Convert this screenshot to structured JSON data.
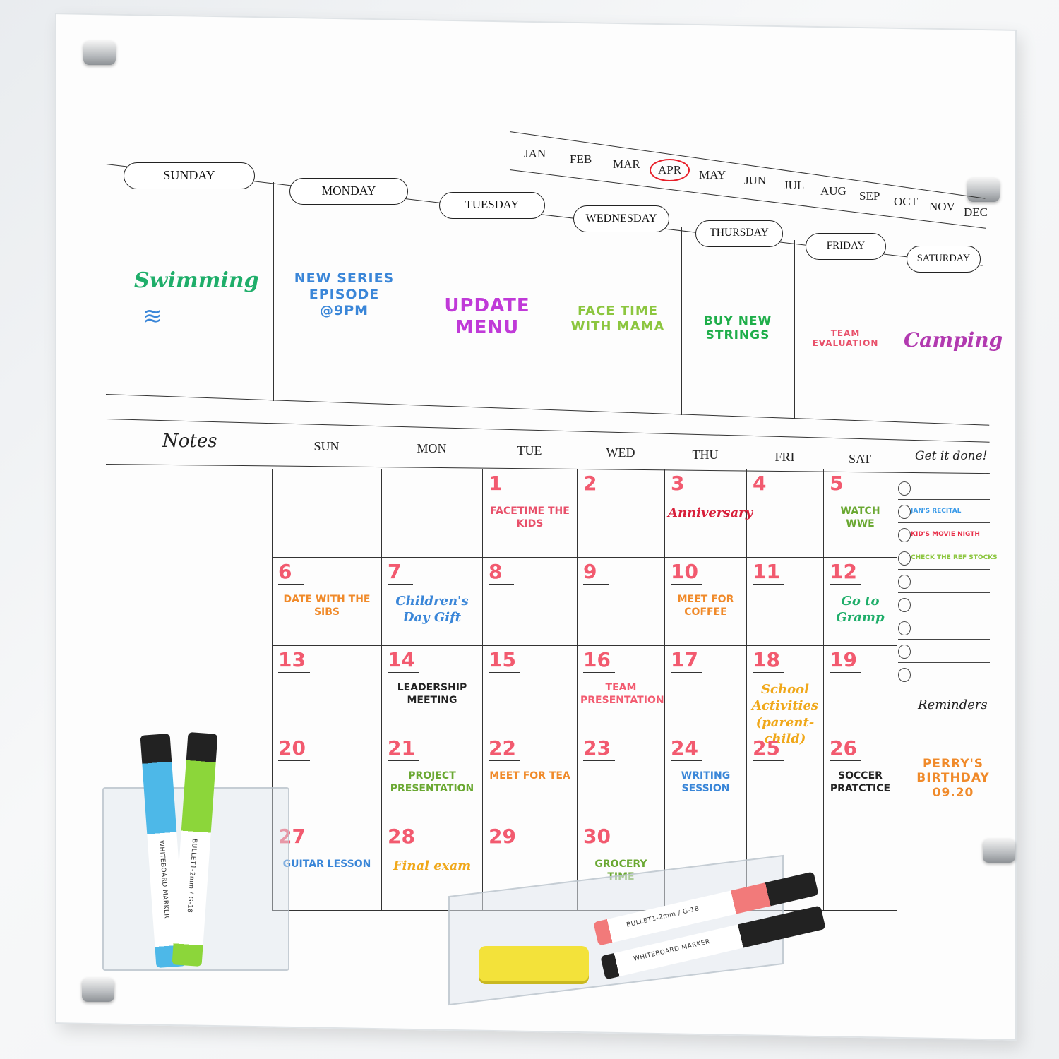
{
  "months": [
    "JAN",
    "FEB",
    "MAR",
    "APR",
    "MAY",
    "JUN",
    "JUL",
    "AUG",
    "SEP",
    "OCT",
    "NOV",
    "DEC"
  ],
  "selected_month": "APR",
  "week": {
    "days": [
      "SUNDAY",
      "MONDAY",
      "TUESDAY",
      "WEDNESDAY",
      "THURSDAY",
      "FRIDAY",
      "SATURDAY"
    ],
    "events": [
      {
        "text": "Swimming",
        "color": "#1fae6a"
      },
      {
        "text": "New series episode @9pm",
        "color": "#3a86d8"
      },
      {
        "text": "Update menu",
        "color": "#c03ad8"
      },
      {
        "text": "Face time with mama",
        "color": "#8cc63f"
      },
      {
        "text": "Buy new strings",
        "color": "#1fae4a"
      },
      {
        "text": "Team evaluation",
        "color": "#e8506a"
      },
      {
        "text": "Camping",
        "color": "#b23ab0"
      }
    ]
  },
  "month": {
    "notes_label": "Notes",
    "weekday_headers": [
      "SUN",
      "MON",
      "TUE",
      "WED",
      "THU",
      "FRI",
      "SAT"
    ],
    "cells": [
      {
        "d": ""
      },
      {
        "d": ""
      },
      {
        "d": "1",
        "e": "Facetime the kids",
        "c": "#e8506a"
      },
      {
        "d": "2"
      },
      {
        "d": "3",
        "e": "Anniversary",
        "c": "#d81f3a",
        "s": true
      },
      {
        "d": "4"
      },
      {
        "d": "5",
        "e": "Watch WWE",
        "c": "#6aa832"
      },
      {
        "d": "6",
        "e": "Date with the sibs",
        "c": "#f08a2a"
      },
      {
        "d": "7",
        "e": "Children's Day Gift",
        "c": "#3a86d8",
        "s": true
      },
      {
        "d": "8"
      },
      {
        "d": "9"
      },
      {
        "d": "10",
        "e": "Meet for coffee",
        "c": "#f08a2a"
      },
      {
        "d": "11"
      },
      {
        "d": "12",
        "e": "Go to Gramp",
        "c": "#1fae6a",
        "s": true
      },
      {
        "d": "13"
      },
      {
        "d": "14",
        "e": "Leadership meeting",
        "c": "#222"
      },
      {
        "d": "15"
      },
      {
        "d": "16",
        "e": "Team presentation",
        "c": "#f25a6f"
      },
      {
        "d": "17"
      },
      {
        "d": "18",
        "e": "School Activities (parent-child)",
        "c": "#f0a81a",
        "s": true
      },
      {
        "d": "19"
      },
      {
        "d": "20"
      },
      {
        "d": "21",
        "e": "Project presentation",
        "c": "#6aa832"
      },
      {
        "d": "22",
        "e": "Meet for tea",
        "c": "#f08a2a"
      },
      {
        "d": "23"
      },
      {
        "d": "24",
        "e": "Writing session",
        "c": "#3a86d8"
      },
      {
        "d": "25"
      },
      {
        "d": "26",
        "e": "Soccer pratctice",
        "c": "#222"
      },
      {
        "d": "27",
        "e": "Guitar lesson",
        "c": "#3a86d8"
      },
      {
        "d": "28",
        "e": "Final exam",
        "c": "#f0a81a",
        "s": true
      },
      {
        "d": "29"
      },
      {
        "d": "30",
        "e": "Grocery time",
        "c": "#6aa832"
      },
      {
        "d": ""
      },
      {
        "d": ""
      },
      {
        "d": ""
      }
    ]
  },
  "todo": {
    "label": "Get it done!",
    "items": [
      {
        "text": "",
        "color": "#222"
      },
      {
        "text": "JAN'S RECITAL",
        "color": "#3a9ae8"
      },
      {
        "text": "KID'S MOVIE NIGTH",
        "color": "#e8304a"
      },
      {
        "text": "CHECK THE REF STOCKS",
        "color": "#8cc63f"
      },
      {
        "text": "",
        "color": "#222"
      },
      {
        "text": "",
        "color": "#222"
      },
      {
        "text": "",
        "color": "#222"
      },
      {
        "text": "",
        "color": "#222"
      },
      {
        "text": "",
        "color": "#222"
      }
    ]
  },
  "reminders": {
    "label": "Reminders",
    "text": "PERRY'S BIRTHDAY 09.20",
    "color": "#f08a2a"
  },
  "markers": {
    "brand_text": "WHITEBOARD MARKER",
    "model_text": "BULLET1-2mm / G-18",
    "colors": [
      "#4db8e8",
      "#8cd63a",
      "#f27a7a",
      "#222222"
    ]
  },
  "accent_date_color": "#f25a6f"
}
